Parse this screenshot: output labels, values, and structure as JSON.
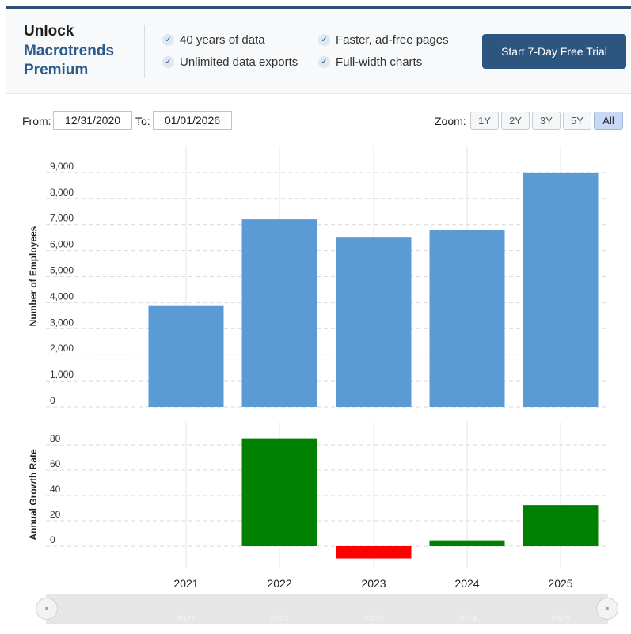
{
  "promo": {
    "line1": "Unlock",
    "line2": "Macrotrends",
    "line3": "Premium",
    "features": [
      "40 years of data",
      "Faster, ad-free pages",
      "Unlimited data exports",
      "Full-width charts"
    ],
    "cta": "Start 7-Day Free Trial"
  },
  "controls": {
    "from_label": "From:",
    "from_value": "12/31/2020",
    "to_label": "To:",
    "to_value": "01/01/2026",
    "zoom_label": "Zoom:",
    "zoom_options": [
      "1Y",
      "2Y",
      "3Y",
      "5Y",
      "All"
    ],
    "zoom_selected": "All"
  },
  "navigator": {
    "handle_left": "⏸",
    "handle_right": "⏸",
    "labels": [
      "2021",
      "2022",
      "2023",
      "2024",
      "2025"
    ]
  },
  "chart_data": [
    {
      "type": "bar",
      "categories": [
        "2021",
        "2022",
        "2023",
        "2024",
        "2025"
      ],
      "series": [
        {
          "values": [
            3900,
            7200,
            6500,
            6800,
            9000
          ]
        }
      ],
      "ylabel": "Number of Employees",
      "yticks": [
        "0",
        "1,000",
        "2,000",
        "3,000",
        "4,000",
        "5,000",
        "6,000",
        "7,000",
        "8,000",
        "9,000"
      ],
      "ylim": [
        0,
        10000
      ],
      "bar_color": "#5b9bd5",
      "grid": true
    },
    {
      "type": "bar",
      "categories": [
        "2021",
        "2022",
        "2023",
        "2024",
        "2025"
      ],
      "series": [
        {
          "values": [
            null,
            84.6,
            -9.7,
            4.6,
            32.4
          ]
        }
      ],
      "ylabel": "Annual Growth Rate",
      "yticks": [
        "0",
        "20",
        "40",
        "60",
        "80"
      ],
      "ylim": [
        -10,
        90
      ],
      "positive_color": "#008000",
      "negative_color": "#ff0000",
      "grid": true
    }
  ]
}
